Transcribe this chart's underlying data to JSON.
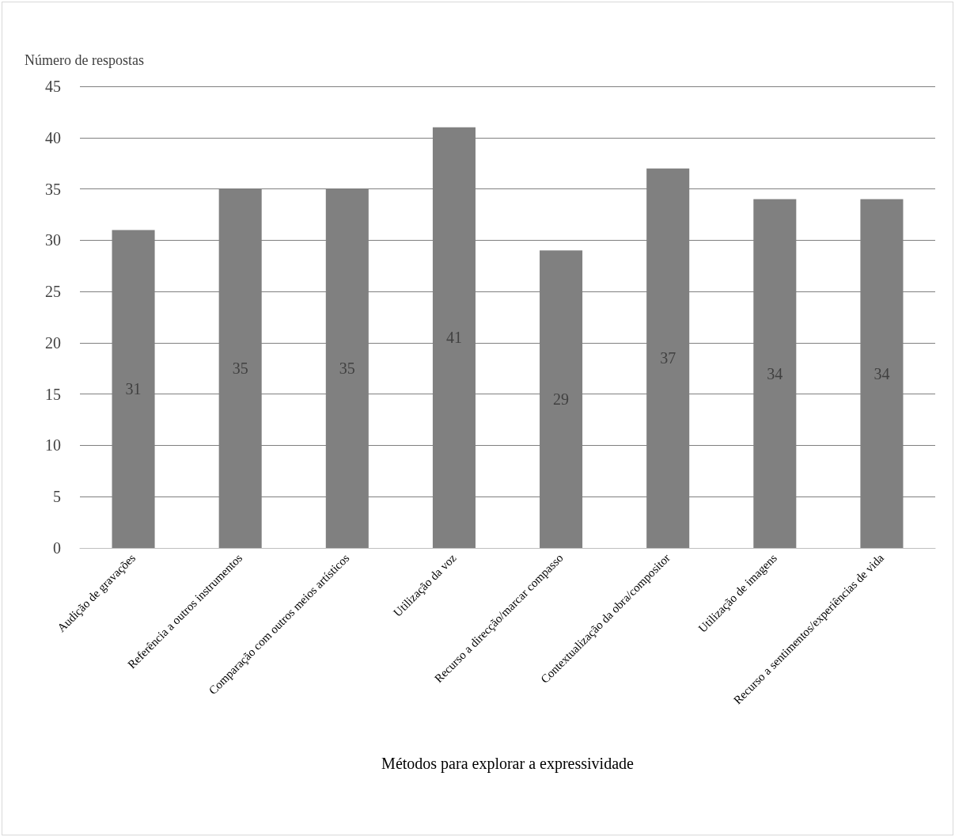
{
  "chart_data": {
    "type": "bar",
    "xlabel": "Métodos para explorar a expressividade",
    "ylabel": "Número de respostas",
    "categories": [
      "Audição de gravações",
      "Referência a outros instrumentos",
      "Comparação com outros meios artísticos",
      "Utilização da voz",
      "Recurso a direcção/marcar compasso",
      "Contextualização da obra/compositor",
      "Utilização de imagens",
      "Recurso a sentimentos/experiências de vida"
    ],
    "values": [
      31,
      35,
      35,
      41,
      29,
      37,
      34,
      34
    ],
    "color": "#808080",
    "ylim": [
      0,
      45
    ],
    "yticks": [
      0,
      5,
      10,
      15,
      20,
      25,
      30,
      35,
      40,
      45
    ],
    "grid": "y",
    "data_labels": true
  }
}
